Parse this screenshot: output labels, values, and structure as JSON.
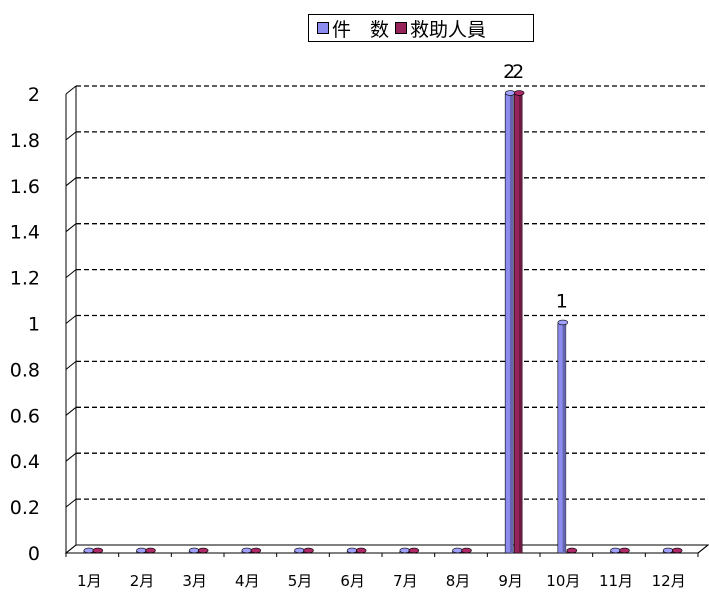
{
  "chart_data": {
    "type": "bar",
    "categories": [
      "1月",
      "2月",
      "3月",
      "4月",
      "5月",
      "6月",
      "7月",
      "8月",
      "9月",
      "10月",
      "11月",
      "12月"
    ],
    "series": [
      {
        "name": "件　数",
        "values": [
          0,
          0,
          0,
          0,
          0,
          0,
          0,
          0,
          2,
          1,
          0,
          0
        ],
        "color": "#8c8cf0"
      },
      {
        "name": "救助人員",
        "values": [
          0,
          0,
          0,
          0,
          0,
          0,
          0,
          0,
          2,
          0,
          0,
          0
        ],
        "color": "#96245a"
      }
    ],
    "ylim": [
      0,
      2
    ],
    "yticks": [
      "0",
      "0.2",
      "0.4",
      "0.6",
      "0.8",
      "1",
      "1.2",
      "1.4",
      "1.6",
      "1.8",
      "2"
    ],
    "data_labels": [
      {
        "series": 0,
        "category": "9月",
        "text": "2"
      },
      {
        "series": 1,
        "category": "9月",
        "text": "2"
      },
      {
        "series": 0,
        "category": "10月",
        "text": "1"
      }
    ],
    "grid": true,
    "legend_position": "top"
  }
}
